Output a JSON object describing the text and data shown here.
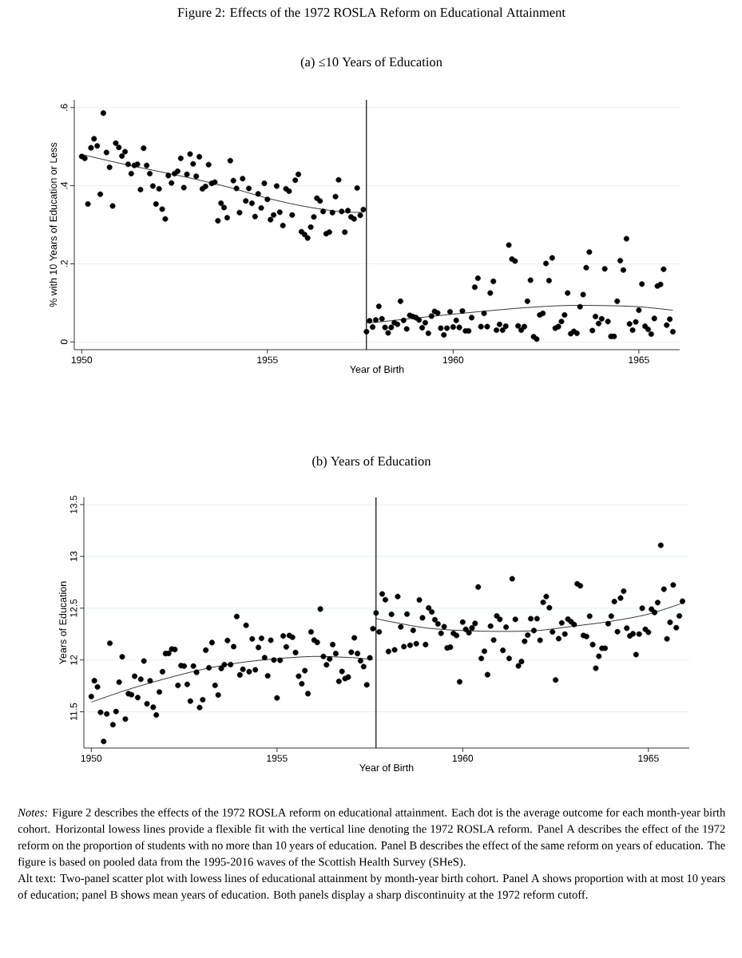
{
  "chart_data": [
    {
      "type": "scatter",
      "title": "Figure 2: Effects of the 1972 ROSLA Reform on Educational Attainment",
      "subtitle": "(a) ≤10 Years of Education",
      "xlabel": "Year of Birth",
      "ylabel": "% with 10 Years of Education or Less",
      "xlim": [
        1949.8,
        1966.1
      ],
      "ylim": [
        -0.02,
        0.62
      ],
      "xticks": [
        1950,
        1955,
        1960,
        1965
      ],
      "yticks": [
        0,
        {
          "value": 0.2,
          "label": ".2"
        },
        {
          "value": 0.4,
          "label": ".4"
        },
        {
          "value": 0.6,
          "label": ".6"
        }
      ],
      "grid": "y",
      "ref_lines": [
        {
          "axis": "x",
          "value": 1957.667,
          "color": "#000000"
        }
      ],
      "x": [
        1950,
        1950.083,
        1950.167,
        1950.25,
        1950.333,
        1950.417,
        1950.5,
        1950.583,
        1950.667,
        1950.75,
        1950.833,
        1950.917,
        1951,
        1951.083,
        1951.167,
        1951.25,
        1951.333,
        1951.417,
        1951.5,
        1951.583,
        1951.667,
        1951.75,
        1951.833,
        1951.917,
        1952,
        1952.083,
        1952.167,
        1952.25,
        1952.333,
        1952.417,
        1952.5,
        1952.583,
        1952.667,
        1952.75,
        1952.833,
        1952.917,
        1953,
        1953.083,
        1953.167,
        1953.25,
        1953.333,
        1953.417,
        1953.5,
        1953.583,
        1953.667,
        1953.75,
        1953.833,
        1953.917,
        1954,
        1954.083,
        1954.167,
        1954.25,
        1954.333,
        1954.417,
        1954.5,
        1954.583,
        1954.667,
        1954.75,
        1954.833,
        1954.917,
        1955,
        1955.083,
        1955.167,
        1955.25,
        1955.333,
        1955.417,
        1955.5,
        1955.583,
        1955.667,
        1955.75,
        1955.833,
        1955.917,
        1956,
        1956.083,
        1956.167,
        1956.25,
        1956.333,
        1956.417,
        1956.5,
        1956.583,
        1956.667,
        1956.75,
        1956.833,
        1956.917,
        1957,
        1957.083,
        1957.167,
        1957.25,
        1957.333,
        1957.417,
        1957.5,
        1957.583,
        1957.667,
        1957.75,
        1957.833,
        1957.917,
        1958,
        1958.083,
        1958.167,
        1958.25,
        1958.333,
        1958.417,
        1958.5,
        1958.583,
        1958.667,
        1958.75,
        1958.833,
        1958.917,
        1959,
        1959.083,
        1959.167,
        1959.25,
        1959.333,
        1959.417,
        1959.5,
        1959.583,
        1959.667,
        1959.75,
        1959.833,
        1959.917,
        1960,
        1960.083,
        1960.167,
        1960.25,
        1960.333,
        1960.417,
        1960.5,
        1960.583,
        1960.667,
        1960.75,
        1960.833,
        1960.917,
        1961,
        1961.083,
        1961.167,
        1961.25,
        1961.333,
        1961.417,
        1961.5,
        1961.583,
        1961.667,
        1961.75,
        1961.833,
        1961.917,
        1962,
        1962.083,
        1962.167,
        1962.25,
        1962.333,
        1962.417,
        1962.5,
        1962.583,
        1962.667,
        1962.75,
        1962.833,
        1962.917,
        1963,
        1963.083,
        1963.167,
        1963.25,
        1963.333,
        1963.417,
        1963.5,
        1963.583,
        1963.667,
        1963.75,
        1963.833,
        1963.917,
        1964,
        1964.083,
        1964.167,
        1964.25,
        1964.333,
        1964.417,
        1964.5,
        1964.583,
        1964.667,
        1964.75,
        1964.833,
        1964.917,
        1965,
        1965.083,
        1965.167,
        1965.25,
        1965.333,
        1965.417,
        1965.5,
        1965.583,
        1965.667,
        1965.75,
        1965.833,
        1965.917
      ],
      "series": [
        {
          "marker": "circle",
          "color": "#000000",
          "values": [
            0.475,
            0.47,
            0.353,
            0.497,
            0.52,
            0.502,
            0.378,
            0.586,
            0.485,
            0.447,
            0.348,
            0.509,
            0.498,
            0.476,
            0.487,
            0.455,
            0.431,
            0.452,
            0.455,
            0.39,
            0.496,
            0.452,
            0.431,
            0.399,
            0.353,
            0.392,
            0.34,
            0.315,
            0.426,
            0.407,
            0.431,
            0.437,
            0.47,
            0.395,
            0.429,
            0.481,
            0.456,
            0.424,
            0.474,
            0.392,
            0.398,
            0.454,
            0.406,
            0.409,
            0.31,
            0.355,
            0.344,
            0.318,
            0.464,
            0.413,
            0.393,
            0.331,
            0.418,
            0.361,
            0.393,
            0.355,
            0.321,
            0.379,
            0.343,
            0.406,
            0.365,
            0.313,
            0.325,
            0.399,
            0.332,
            0.298,
            0.392,
            0.386,
            0.325,
            0.414,
            0.429,
            0.282,
            0.275,
            0.266,
            0.294,
            0.32,
            0.368,
            0.361,
            0.334,
            0.277,
            0.281,
            0.331,
            0.372,
            0.415,
            0.334,
            0.281,
            0.336,
            0.32,
            0.315,
            0.394,
            0.324,
            0.339,
            0.026,
            0.054,
            0.038,
            0.056,
            0.091,
            0.059,
            0.037,
            0.023,
            0.037,
            0.049,
            0.045,
            0.104,
            0.055,
            0.033,
            0.068,
            0.065,
            0.062,
            0.056,
            0.036,
            0.049,
            0.022,
            0.066,
            0.078,
            0.074,
            0.035,
            0.018,
            0.035,
            0.077,
            0.038,
            0.055,
            0.037,
            0.079,
            0.028,
            0.028,
            0.062,
            0.14,
            0.163,
            0.039,
            0.073,
            0.039,
            0.125,
            0.155,
            0.03,
            0.045,
            0.03,
            0.04,
            0.248,
            0.212,
            0.207,
            0.041,
            0.03,
            0.039,
            0.104,
            0.158,
            0.013,
            0.007,
            0.069,
            0.073,
            0.201,
            0.157,
            0.215,
            0.035,
            0.039,
            0.052,
            0.069,
            0.125,
            0.021,
            0.027,
            0.022,
            0.09,
            0.121,
            0.19,
            0.23,
            0.029,
            0.065,
            0.047,
            0.059,
            0.187,
            0.052,
            0.014,
            0.014,
            0.104,
            0.208,
            0.184,
            0.264,
            0.046,
            0.03,
            0.051,
            0.081,
            0.148,
            0.04,
            0.032,
            0.02,
            0.06,
            0.143,
            0.147,
            0.186,
            0.043,
            0.058,
            0.026
          ]
        },
        {
          "type": "line",
          "color": "#000000",
          "x": [
            1950,
            1951,
            1952,
            1953,
            1954,
            1955,
            1956,
            1957,
            1957.583
          ],
          "values": [
            0.48,
            0.458,
            0.438,
            0.418,
            0.395,
            0.368,
            0.347,
            0.333,
            0.332
          ]
        },
        {
          "type": "line",
          "color": "#000000",
          "x": [
            1957.667,
            1958,
            1959,
            1960,
            1961,
            1962,
            1963,
            1964,
            1965,
            1965.917
          ],
          "values": [
            0.049,
            0.051,
            0.061,
            0.071,
            0.08,
            0.088,
            0.093,
            0.093,
            0.09,
            0.081
          ]
        }
      ]
    },
    {
      "type": "scatter",
      "title": "(b) Years of Education",
      "xlabel": "Year of Birth",
      "ylabel": "Years of Education",
      "xlim": [
        1949.8,
        1966.1
      ],
      "ylim": [
        11.15,
        13.57
      ],
      "xticks": [
        1950,
        1955,
        1960,
        1965
      ],
      "yticks": [
        11.5,
        12,
        12.5,
        13,
        13.5
      ],
      "grid": "y",
      "ref_lines": [
        {
          "axis": "x",
          "value": 1957.667,
          "color": "#000000"
        }
      ],
      "annotations": [
        "*Notes:* Figure 2 describes the effects of the 1972 ROSLA reform on educational attainment. Each dot is the average outcome for each month-year birth cohort. Horizontal lowess lines provide a flexible fit with the vertical line denoting the 1972 ROSLA reform. Panel A describes the effect of the 1972 reform on the proportion of students with no more than 10 years of education. Panel B describes the effect of the same reform on years of education. The figure is based on pooled data from the 1995-2016 waves of the Scottish Health Survey (SHeS).",
        "Alt text: Two-panel scatter plot with lowess lines of educational attainment by month-year birth cohort. Panel A shows proportion with at most 10 years of education; panel B shows mean years of education. Both panels display a sharp discontinuity at the 1972 reform cutoff."
      ],
      "x": [
        1950,
        1950.083,
        1950.167,
        1950.25,
        1950.333,
        1950.417,
        1950.5,
        1950.583,
        1950.667,
        1950.75,
        1950.833,
        1950.917,
        1951,
        1951.083,
        1951.167,
        1951.25,
        1951.333,
        1951.417,
        1951.5,
        1951.583,
        1951.667,
        1951.75,
        1951.833,
        1951.917,
        1952,
        1952.083,
        1952.167,
        1952.25,
        1952.333,
        1952.417,
        1952.5,
        1952.583,
        1952.667,
        1952.75,
        1952.833,
        1952.917,
        1953,
        1953.083,
        1953.167,
        1953.25,
        1953.333,
        1953.417,
        1953.5,
        1953.583,
        1953.667,
        1953.75,
        1953.833,
        1953.917,
        1954,
        1954.083,
        1954.167,
        1954.25,
        1954.333,
        1954.417,
        1954.5,
        1954.583,
        1954.667,
        1954.75,
        1954.833,
        1954.917,
        1955,
        1955.083,
        1955.167,
        1955.25,
        1955.333,
        1955.417,
        1955.5,
        1955.583,
        1955.667,
        1955.75,
        1955.833,
        1955.917,
        1956,
        1956.083,
        1956.167,
        1956.25,
        1956.333,
        1956.417,
        1956.5,
        1956.583,
        1956.667,
        1956.75,
        1956.833,
        1956.917,
        1957,
        1957.083,
        1957.167,
        1957.25,
        1957.333,
        1957.417,
        1957.5,
        1957.583,
        1957.667,
        1957.75,
        1957.833,
        1957.917,
        1958,
        1958.083,
        1958.167,
        1958.25,
        1958.333,
        1958.417,
        1958.5,
        1958.583,
        1958.667,
        1958.75,
        1958.833,
        1958.917,
        1959,
        1959.083,
        1959.167,
        1959.25,
        1959.333,
        1959.417,
        1959.5,
        1959.583,
        1959.667,
        1959.75,
        1959.833,
        1959.917,
        1960,
        1960.083,
        1960.167,
        1960.25,
        1960.333,
        1960.417,
        1960.5,
        1960.583,
        1960.667,
        1960.75,
        1960.833,
        1960.917,
        1961,
        1961.083,
        1961.167,
        1961.25,
        1961.333,
        1961.417,
        1961.5,
        1961.583,
        1961.667,
        1961.75,
        1961.833,
        1961.917,
        1962,
        1962.083,
        1962.167,
        1962.25,
        1962.333,
        1962.417,
        1962.5,
        1962.583,
        1962.667,
        1962.75,
        1962.833,
        1962.917,
        1963,
        1963.083,
        1963.167,
        1963.25,
        1963.333,
        1963.417,
        1963.5,
        1963.583,
        1963.667,
        1963.75,
        1963.833,
        1963.917,
        1964,
        1964.083,
        1964.167,
        1964.25,
        1964.333,
        1964.417,
        1964.5,
        1964.583,
        1964.667,
        1964.75,
        1964.833,
        1964.917,
        1965,
        1965.083,
        1965.167,
        1965.25,
        1965.333,
        1965.417,
        1965.5,
        1965.583,
        1965.667,
        1965.75,
        1965.833,
        1965.917
      ],
      "series": [
        {
          "marker": "circle",
          "color": "#000000",
          "values": [
            11.647,
            11.8,
            11.74,
            11.495,
            11.214,
            11.479,
            12.162,
            11.376,
            11.503,
            11.786,
            12.031,
            11.43,
            11.675,
            11.665,
            11.843,
            11.637,
            11.814,
            11.99,
            11.577,
            11.799,
            11.544,
            11.469,
            11.691,
            11.887,
            12.062,
            12.064,
            12.106,
            12.101,
            11.755,
            11.946,
            11.941,
            11.765,
            11.603,
            11.941,
            11.881,
            11.541,
            11.616,
            12.095,
            11.925,
            12.168,
            11.755,
            11.662,
            11.918,
            11.956,
            12.188,
            11.956,
            12.129,
            12.42,
            11.856,
            11.91,
            12.335,
            11.887,
            12.204,
            11.905,
            12.121,
            12.209,
            12.023,
            11.848,
            12.191,
            12.0,
            11.634,
            11.997,
            12.232,
            12.126,
            12.237,
            12.219,
            12.072,
            11.843,
            11.771,
            11.897,
            11.675,
            12.271,
            12.193,
            12.17,
            12.492,
            12.034,
            11.954,
            12.01,
            12.149,
            12.062,
            11.794,
            11.889,
            11.82,
            11.835,
            12.075,
            12.214,
            12.062,
            11.992,
            11.936,
            11.76,
            12.021,
            12.302,
            12.454,
            12.271,
            12.637,
            12.582,
            12.082,
            12.441,
            12.098,
            12.613,
            12.32,
            12.129,
            12.443,
            12.142,
            12.286,
            12.157,
            12.58,
            12.407,
            12.149,
            12.503,
            12.464,
            12.389,
            12.348,
            12.258,
            12.322,
            12.116,
            12.124,
            12.258,
            12.237,
            11.789,
            12.366,
            12.296,
            12.263,
            12.309,
            12.353,
            12.704,
            12.015,
            12.085,
            11.858,
            12.327,
            12.193,
            12.425,
            12.392,
            12.093,
            12.317,
            12.015,
            12.784,
            12.392,
            11.943,
            11.985,
            12.18,
            12.24,
            12.399,
            12.284,
            12.399,
            12.191,
            12.557,
            12.613,
            12.505,
            12.271,
            11.807,
            12.206,
            12.358,
            12.25,
            12.394,
            12.369,
            12.343,
            12.735,
            12.716,
            12.237,
            12.227,
            12.423,
            12.149,
            11.92,
            12.036,
            12.113,
            12.113,
            12.351,
            12.423,
            12.564,
            12.273,
            12.598,
            12.665,
            12.307,
            12.232,
            12.253,
            12.052,
            12.25,
            12.5,
            12.296,
            12.268,
            12.49,
            12.459,
            12.554,
            13.108,
            12.683,
            12.204,
            12.363,
            12.724,
            12.312,
            12.425,
            12.567
          ]
        },
        {
          "type": "line",
          "color": "#000000",
          "x": [
            1950,
            1951,
            1952,
            1953,
            1954,
            1955,
            1956,
            1957,
            1957.583
          ],
          "values": [
            11.593,
            11.716,
            11.82,
            11.91,
            11.974,
            12.013,
            12.034,
            12.023,
            12.005
          ]
        },
        {
          "type": "line",
          "color": "#000000",
          "x": [
            1957.667,
            1958,
            1959,
            1960,
            1961,
            1962,
            1963,
            1964,
            1965,
            1965.917
          ],
          "values": [
            12.4,
            12.374,
            12.31,
            12.284,
            12.276,
            12.284,
            12.327,
            12.374,
            12.443,
            12.549
          ]
        }
      ]
    }
  ]
}
